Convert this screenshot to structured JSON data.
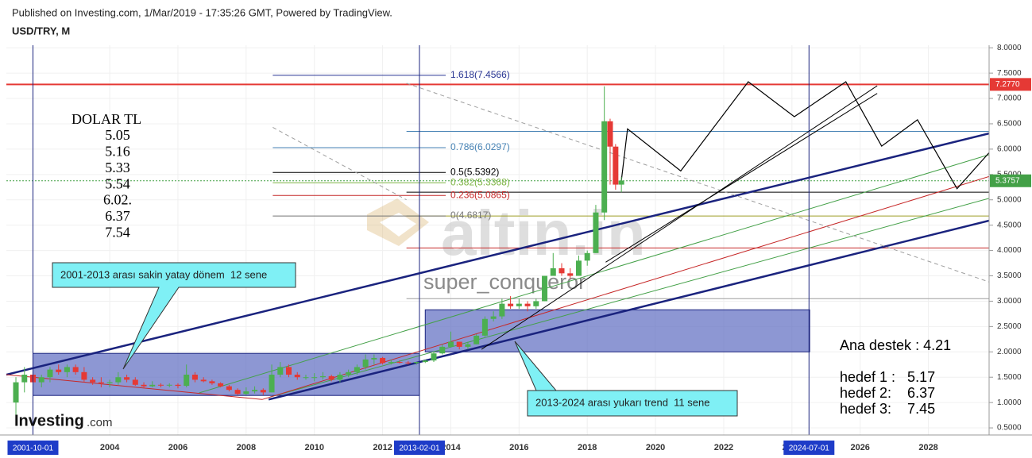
{
  "chart_data": {
    "type": "candlestick",
    "header": "Published on Investing.com, 1/Mar/2019 - 17:35:26 GMT, Powered by TradingView.",
    "title": "USD/TRY, M",
    "grid": true,
    "xlim": [
      2000.97,
      2029.78
    ],
    "xticks": [
      2004,
      2006,
      2008,
      2010,
      2012,
      2014,
      2016,
      2018,
      2020,
      2022,
      2024,
      2026,
      2028
    ],
    "ylim": [
      0.36,
      8.05
    ],
    "yticks": [
      {
        "value": 0.5,
        "label": "0.5000"
      },
      {
        "value": 1,
        "label": "1.0000"
      },
      {
        "value": 1.5,
        "label": "1.5000"
      },
      {
        "value": 2,
        "label": "2.0000"
      },
      {
        "value": 2.5,
        "label": "2.5000"
      },
      {
        "value": 3,
        "label": "3.0000"
      },
      {
        "value": 3.5,
        "label": "3.5000"
      },
      {
        "value": 4,
        "label": "4.0000"
      },
      {
        "value": 4.5,
        "label": "4.5000"
      },
      {
        "value": 5,
        "label": "5.0000"
      },
      {
        "value": 5.5,
        "label": "5.5000"
      },
      {
        "value": 6,
        "label": "6.0000"
      },
      {
        "value": 6.5,
        "label": "6.5000"
      },
      {
        "value": 7,
        "label": "7.0000"
      },
      {
        "value": 7.5,
        "label": "7.5000"
      },
      {
        "value": 8,
        "label": "8.0000"
      }
    ],
    "up_color": "#4caf50",
    "down_color": "#e53935",
    "candles": {
      "x": [
        2001.25,
        2001.5,
        2001.75,
        2002,
        2002.25,
        2002.5,
        2002.75,
        2003,
        2003.25,
        2003.5,
        2003.75,
        2004,
        2004.25,
        2004.5,
        2004.75,
        2005,
        2005.25,
        2005.5,
        2005.75,
        2006,
        2006.25,
        2006.5,
        2006.75,
        2007,
        2007.25,
        2007.5,
        2007.75,
        2008,
        2008.25,
        2008.5,
        2008.75,
        2009,
        2009.25,
        2009.5,
        2009.75,
        2010,
        2010.25,
        2010.5,
        2010.75,
        2011,
        2011.25,
        2011.5,
        2011.75,
        2012,
        2012.25,
        2012.5,
        2012.75,
        2013,
        2013.25,
        2013.5,
        2013.75,
        2014,
        2014.25,
        2014.5,
        2014.75,
        2015,
        2015.25,
        2015.5,
        2015.75,
        2016,
        2016.25,
        2016.5,
        2016.75,
        2017,
        2017.25,
        2017.5,
        2017.75,
        2018,
        2018.25,
        2018.5,
        2018.67,
        2018.83,
        2019
      ],
      "open": [
        1.0,
        1.4,
        1.55,
        1.4,
        1.5,
        1.65,
        1.6,
        1.7,
        1.6,
        1.45,
        1.4,
        1.38,
        1.4,
        1.5,
        1.45,
        1.35,
        1.32,
        1.35,
        1.34,
        1.35,
        1.33,
        1.55,
        1.45,
        1.42,
        1.38,
        1.32,
        1.25,
        1.17,
        1.22,
        1.25,
        1.2,
        1.55,
        1.7,
        1.55,
        1.5,
        1.5,
        1.5,
        1.52,
        1.45,
        1.55,
        1.6,
        1.7,
        1.85,
        1.88,
        1.78,
        1.8,
        1.79,
        1.78,
        1.8,
        1.83,
        1.97,
        2.1,
        2.2,
        2.1,
        2.15,
        2.32,
        2.65,
        2.7,
        2.95,
        2.9,
        2.95,
        2.9,
        3.0,
        3.5,
        3.65,
        3.55,
        3.5,
        3.8,
        3.95,
        4.75,
        6.55,
        6.05,
        5.3
      ],
      "high": [
        1.5,
        1.7,
        1.65,
        1.55,
        1.7,
        1.75,
        1.75,
        1.75,
        1.7,
        1.5,
        1.5,
        1.45,
        1.6,
        1.55,
        1.5,
        1.4,
        1.42,
        1.38,
        1.38,
        1.38,
        1.75,
        1.6,
        1.5,
        1.45,
        1.4,
        1.35,
        1.28,
        1.3,
        1.32,
        1.28,
        1.75,
        1.8,
        1.75,
        1.6,
        1.55,
        1.58,
        1.6,
        1.55,
        1.6,
        1.65,
        1.75,
        1.95,
        1.95,
        1.9,
        1.85,
        1.83,
        1.82,
        1.8,
        1.85,
        2.0,
        2.15,
        2.4,
        2.2,
        2.2,
        2.35,
        2.7,
        2.8,
        3.05,
        3.1,
        3.05,
        3.0,
        3.05,
        3.5,
        3.95,
        3.75,
        3.65,
        3.9,
        4.0,
        4.9,
        7.24,
        6.6,
        6.1,
        5.45
      ],
      "low": [
        0.6,
        1.2,
        1.3,
        1.3,
        1.4,
        1.55,
        1.5,
        1.55,
        1.4,
        1.35,
        1.3,
        1.3,
        1.35,
        1.4,
        1.33,
        1.28,
        1.3,
        1.3,
        1.3,
        1.28,
        1.3,
        1.4,
        1.4,
        1.35,
        1.3,
        1.22,
        1.15,
        1.15,
        1.18,
        1.15,
        1.2,
        1.5,
        1.5,
        1.45,
        1.45,
        1.42,
        1.45,
        1.42,
        1.4,
        1.5,
        1.55,
        1.65,
        1.75,
        1.75,
        1.75,
        1.77,
        1.75,
        1.75,
        1.78,
        1.8,
        1.95,
        2.1,
        2.05,
        2.05,
        2.15,
        2.3,
        2.6,
        2.65,
        2.85,
        2.85,
        2.8,
        2.85,
        3.0,
        3.5,
        3.5,
        3.45,
        3.5,
        3.7,
        3.95,
        4.6,
        5.3,
        5.2,
        5.15
      ],
      "close": [
        1.4,
        1.55,
        1.4,
        1.5,
        1.65,
        1.6,
        1.7,
        1.6,
        1.45,
        1.4,
        1.38,
        1.4,
        1.5,
        1.45,
        1.35,
        1.32,
        1.35,
        1.34,
        1.35,
        1.33,
        1.55,
        1.45,
        1.42,
        1.38,
        1.32,
        1.25,
        1.17,
        1.22,
        1.25,
        1.2,
        1.55,
        1.7,
        1.55,
        1.5,
        1.5,
        1.5,
        1.52,
        1.45,
        1.55,
        1.6,
        1.7,
        1.85,
        1.88,
        1.78,
        1.8,
        1.79,
        1.78,
        1.8,
        1.83,
        1.97,
        2.1,
        2.2,
        2.1,
        2.15,
        2.32,
        2.65,
        2.7,
        2.95,
        2.9,
        2.95,
        2.9,
        3.0,
        3.5,
        3.65,
        3.55,
        3.5,
        3.8,
        3.95,
        4.75,
        6.55,
        6.05,
        5.3,
        5.38
      ]
    },
    "boxes": [
      {
        "x": [
          2001.75,
          2013.08
        ],
        "y": [
          1.14,
          1.97
        ],
        "color": "#5c6bc0"
      },
      {
        "x": [
          2013.25,
          2024.52
        ],
        "y": [
          2.0,
          2.83
        ],
        "color": "#5c6bc0"
      }
    ],
    "markers": [
      {
        "x": 2001.75,
        "label": "2001-10-01"
      },
      {
        "x": 2013.08,
        "label": "2013-02-01"
      },
      {
        "x": 2024.5,
        "label": "2024-07-01"
      }
    ],
    "marker_color": "#1a237e",
    "levels": [
      {
        "value": 7.277,
        "color": "#e53935"
      },
      {
        "value": 5.3757,
        "color": "#43a047",
        "dashed": true
      },
      {
        "value": 6.35,
        "color": "#4682b4",
        "from": 2012.7
      },
      {
        "value": 5.15,
        "color": "#000000",
        "from": 2012.7
      },
      {
        "value": 4.68,
        "color": "#9e9d24",
        "from": 2012.7
      },
      {
        "value": 4.05,
        "color": "#c62828",
        "from": 2012.7
      },
      {
        "value": 3.05,
        "color": "#9e9e9e",
        "from": 2012.7
      }
    ],
    "fib_x": [
      2008.78,
      2013.85
    ],
    "fib": [
      {
        "label": "1.618(7.4566)",
        "value": 7.4566,
        "color": "#283593"
      },
      {
        "label": "0.786(6.0297)",
        "value": 6.0297,
        "color": "#4682b4"
      },
      {
        "label": "0.5(5.5392)",
        "value": 5.5392,
        "color": "#000000"
      },
      {
        "label": "0.382(5.3368)",
        "value": 5.3368,
        "color": "#7cb342"
      },
      {
        "label": "0.236(5.0865)",
        "value": 5.0865,
        "color": "#c62828"
      },
      {
        "label": "0(4.6817)",
        "value": 4.6817,
        "color": "#757575"
      }
    ],
    "price_tags": [
      {
        "value": 7.277,
        "label": "7.2770",
        "color": "#e53935"
      },
      {
        "value": 5.3757,
        "label": "5.3757",
        "color": "#43a047"
      }
    ],
    "drawings": [
      {
        "x": [
          2000.97,
          2029.78
        ],
        "y": [
          1.55,
          6.31
        ],
        "color": "#1a237e",
        "width": 2.5
      },
      {
        "x": [
          2008.66,
          2029.78
        ],
        "y": [
          1.06,
          4.59
        ],
        "color": "#1a237e",
        "width": 2.5
      },
      {
        "x": [
          2006.62,
          2029.78
        ],
        "y": [
          1.19,
          5.89
        ],
        "color": "#43a047",
        "width": 1
      },
      {
        "x": [
          2008.7,
          2029.78
        ],
        "y": [
          1.11,
          5.03
        ],
        "color": "#43a047",
        "width": 1
      },
      {
        "x": [
          2008.47,
          2029.78
        ],
        "y": [
          1.06,
          5.46
        ],
        "color": "#c62828",
        "width": 1
      },
      {
        "x": [
          2000.97,
          2008.47
        ],
        "y": [
          1.55,
          1.06
        ],
        "color": "#c62828",
        "width": 1
      },
      {
        "x": [
          2012.7,
          2029.78
        ],
        "y": [
          7.3,
          3.38
        ],
        "color": "#9e9e9e",
        "width": 1,
        "dashed": true
      },
      {
        "x": [
          2008.78,
          2012.7
        ],
        "y": [
          6.43,
          5.0
        ],
        "color": "#9e9e9e",
        "width": 1,
        "dashed": true
      },
      {
        "x": [
          2018.54,
          2026.5
        ],
        "y": [
          3.77,
          7.1
        ],
        "color": "#000000",
        "width": 1
      },
      {
        "x": [
          2014.9,
          2026.5
        ],
        "y": [
          2.05,
          7.25
        ],
        "color": "#000000",
        "width": 1
      }
    ],
    "projection": {
      "x": [
        2019,
        2019.18,
        2020.74,
        2022.72,
        2024.07,
        2025.58,
        2026.63,
        2027.68,
        2028.84,
        2029.78
      ],
      "y": [
        5.38,
        6.4,
        5.57,
        7.33,
        6.64,
        7.33,
        6.06,
        6.58,
        5.22,
        5.93
      ],
      "color": "#000000"
    },
    "notes": {
      "title": "DOLAR TL",
      "items": [
        "5.05",
        "5.16",
        "5.33",
        "5.54",
        "6.02.",
        "6.37",
        "7.54"
      ]
    },
    "callouts": [
      "2001-2013 arası sakin yatay dönem  12 sene",
      "2013-2024 arası yukarı trend  11 sene"
    ],
    "targets": [
      "Ana destek : 4.21",
      "hedef 1 :   5.17",
      "hedef 2:    6.37",
      "hedef 3:    7.45"
    ],
    "watermarks": [
      "altin.in",
      "super_conqueror",
      "Investing",
      ".com"
    ]
  }
}
